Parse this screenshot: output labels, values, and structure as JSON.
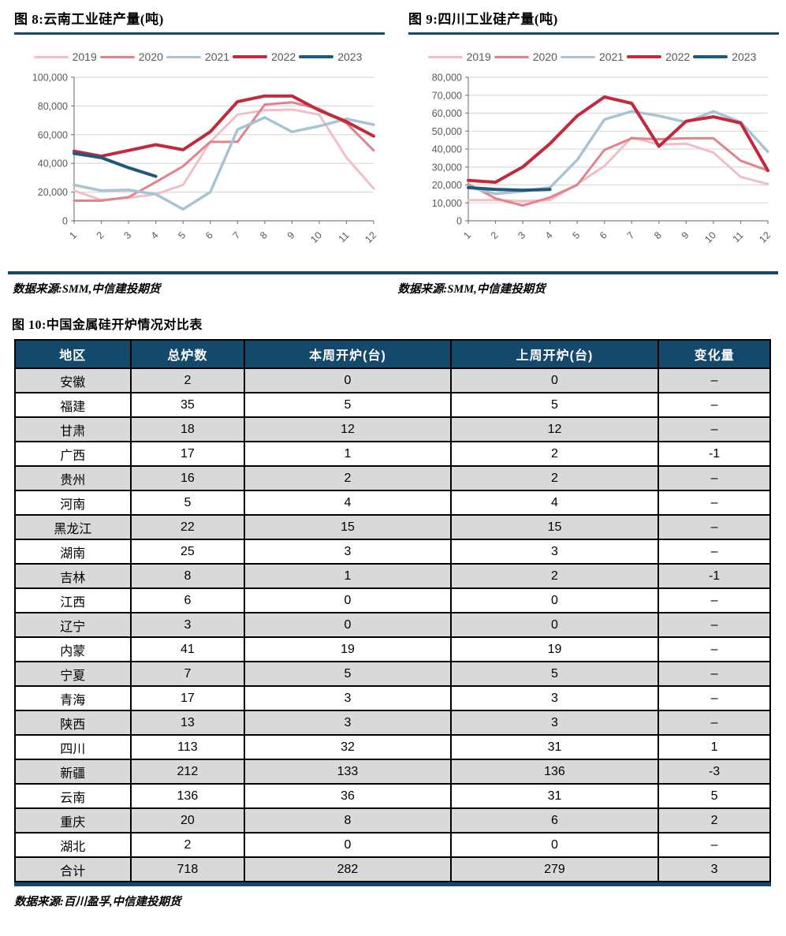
{
  "figures": {
    "fig8": {
      "title": "图 8:云南工业硅产量(吨)",
      "source": "数据来源:SMM,中信建投期货"
    },
    "fig9": {
      "title": "图 9:四川工业硅产量(吨)",
      "source": "数据来源:SMM,中信建投期货"
    },
    "fig10": {
      "title": "图 10:中国金属硅开炉情况对比表",
      "source": "数据来源:百川盈孚,中信建投期货"
    }
  },
  "colors": {
    "navy_rule": "#14496B",
    "header_bg": "#14496B",
    "row_alt_gray": "#D9D9D9",
    "grid": "#D9D9D9",
    "axis": "#808080",
    "axis_text": "#595959",
    "s2019": "#F1BEC6",
    "s2020": "#E2828D",
    "s2021": "#A9C3D4",
    "s2022": "#C3293D",
    "s2023": "#1E597B"
  },
  "chart_data": [
    {
      "type": "line",
      "title": "图 8:云南工业硅产量(吨)",
      "xlabel": "",
      "ylabel": "",
      "x": [
        1,
        2,
        3,
        4,
        5,
        6,
        7,
        8,
        9,
        10,
        11,
        12
      ],
      "ylim": [
        0,
        100000
      ],
      "ytick_step": 20000,
      "grid": true,
      "legend_position": "top",
      "series": [
        {
          "name": "2019",
          "color": "#F1BEC6",
          "width": 3,
          "values": [
            21000,
            14500,
            16000,
            18500,
            25000,
            55000,
            74000,
            77000,
            77500,
            74000,
            44000,
            22500
          ]
        },
        {
          "name": "2020",
          "color": "#E2828D",
          "width": 3,
          "values": [
            14000,
            14000,
            16500,
            27000,
            38000,
            55000,
            55000,
            81000,
            82500,
            78000,
            68000,
            49000
          ]
        },
        {
          "name": "2021",
          "color": "#A9C3D4",
          "width": 3.5,
          "values": [
            25000,
            21000,
            21500,
            18500,
            8000,
            20000,
            63500,
            72000,
            62000,
            66000,
            71000,
            67000
          ]
        },
        {
          "name": "2022",
          "color": "#C3293D",
          "width": 4,
          "values": [
            48500,
            45000,
            49000,
            53000,
            49500,
            62000,
            83000,
            87000,
            87000,
            77000,
            69000,
            59000
          ]
        },
        {
          "name": "2023",
          "color": "#1E597B",
          "width": 4,
          "values": [
            47000,
            44000,
            37000,
            31000,
            null,
            null,
            null,
            null,
            null,
            null,
            null,
            null
          ]
        }
      ]
    },
    {
      "type": "line",
      "title": "图 9:四川工业硅产量(吨)",
      "xlabel": "",
      "ylabel": "",
      "x": [
        1,
        2,
        3,
        4,
        5,
        6,
        7,
        8,
        9,
        10,
        11,
        12
      ],
      "ylim": [
        0,
        80000
      ],
      "ytick_step": 10000,
      "grid": true,
      "legend_position": "top",
      "series": [
        {
          "name": "2019",
          "color": "#F1BEC6",
          "width": 3,
          "values": [
            11500,
            11500,
            11000,
            11500,
            20500,
            30500,
            46500,
            42500,
            43000,
            38000,
            24500,
            20500
          ]
        },
        {
          "name": "2020",
          "color": "#E2828D",
          "width": 3,
          "values": [
            20500,
            12500,
            8500,
            13000,
            20000,
            39500,
            46000,
            45500,
            46000,
            46000,
            33500,
            28000
          ]
        },
        {
          "name": "2021",
          "color": "#A9C3D4",
          "width": 3.5,
          "values": [
            19000,
            15000,
            16500,
            18500,
            34000,
            56500,
            61000,
            58500,
            55000,
            61000,
            55000,
            38500
          ]
        },
        {
          "name": "2022",
          "color": "#C3293D",
          "width": 4,
          "values": [
            22500,
            21500,
            30000,
            43000,
            58500,
            69000,
            65500,
            41500,
            55500,
            58000,
            54500,
            28000
          ]
        },
        {
          "name": "2023",
          "color": "#1E597B",
          "width": 4,
          "values": [
            18500,
            17500,
            17000,
            17500,
            null,
            null,
            null,
            null,
            null,
            null,
            null,
            null
          ]
        }
      ]
    }
  ],
  "table": {
    "headers": [
      "地区",
      "总炉数",
      "本周开炉(台)",
      "上周开炉(台)",
      "变化量"
    ],
    "rows": [
      {
        "region": "安徽",
        "total": "2",
        "this_week": "0",
        "last_week": "0",
        "change": "–"
      },
      {
        "region": "福建",
        "total": "35",
        "this_week": "5",
        "last_week": "5",
        "change": "–"
      },
      {
        "region": "甘肃",
        "total": "18",
        "this_week": "12",
        "last_week": "12",
        "change": "–"
      },
      {
        "region": "广西",
        "total": "17",
        "this_week": "1",
        "last_week": "2",
        "change": "-1"
      },
      {
        "region": "贵州",
        "total": "16",
        "this_week": "2",
        "last_week": "2",
        "change": "–"
      },
      {
        "region": "河南",
        "total": "5",
        "this_week": "4",
        "last_week": "4",
        "change": "–"
      },
      {
        "region": "黑龙江",
        "total": "22",
        "this_week": "15",
        "last_week": "15",
        "change": "–"
      },
      {
        "region": "湖南",
        "total": "25",
        "this_week": "3",
        "last_week": "3",
        "change": "–"
      },
      {
        "region": "吉林",
        "total": "8",
        "this_week": "1",
        "last_week": "2",
        "change": "-1"
      },
      {
        "region": "江西",
        "total": "6",
        "this_week": "0",
        "last_week": "0",
        "change": "–"
      },
      {
        "region": "辽宁",
        "total": "3",
        "this_week": "0",
        "last_week": "0",
        "change": "–"
      },
      {
        "region": "内蒙",
        "total": "41",
        "this_week": "19",
        "last_week": "19",
        "change": "–"
      },
      {
        "region": "宁夏",
        "total": "7",
        "this_week": "5",
        "last_week": "5",
        "change": "–"
      },
      {
        "region": "青海",
        "total": "17",
        "this_week": "3",
        "last_week": "3",
        "change": "–"
      },
      {
        "region": "陕西",
        "total": "13",
        "this_week": "3",
        "last_week": "3",
        "change": "–"
      },
      {
        "region": "四川",
        "total": "113",
        "this_week": "32",
        "last_week": "31",
        "change": "1"
      },
      {
        "region": "新疆",
        "total": "212",
        "this_week": "133",
        "last_week": "136",
        "change": "-3"
      },
      {
        "region": "云南",
        "total": "136",
        "this_week": "36",
        "last_week": "31",
        "change": "5"
      },
      {
        "region": "重庆",
        "total": "20",
        "this_week": "8",
        "last_week": "6",
        "change": "2"
      },
      {
        "region": "湖北",
        "total": "2",
        "this_week": "0",
        "last_week": "0",
        "change": "–"
      },
      {
        "region": "合计",
        "total": "718",
        "this_week": "282",
        "last_week": "279",
        "change": "3"
      }
    ]
  }
}
